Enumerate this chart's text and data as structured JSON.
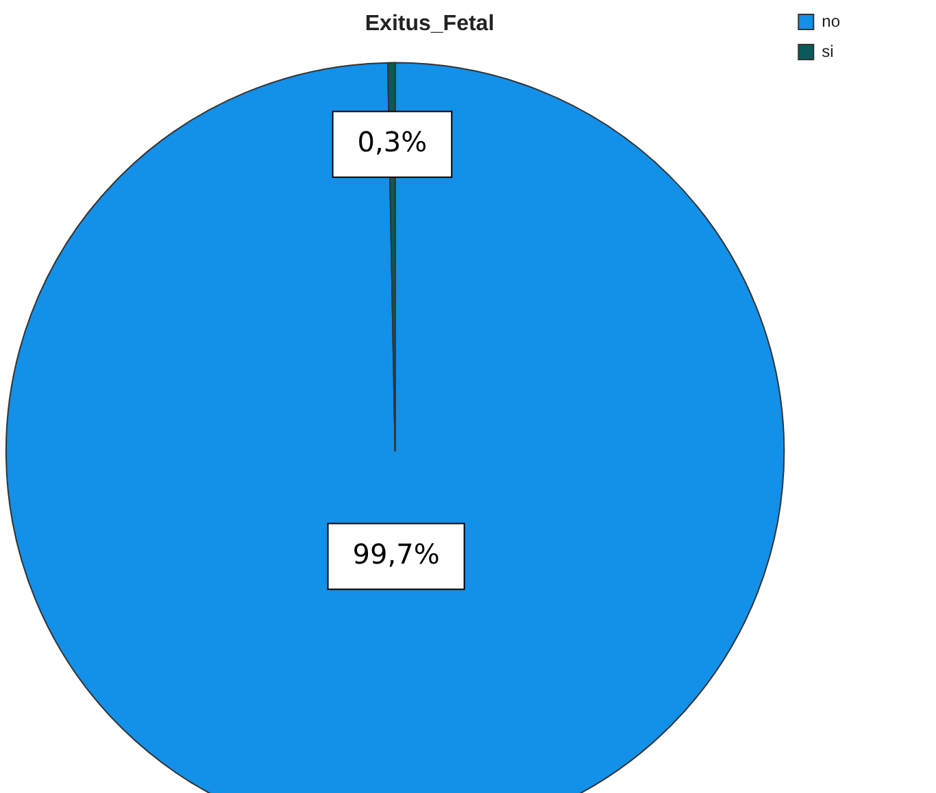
{
  "chart_data": {
    "type": "pie",
    "title": "Exitus_Fetal",
    "categories": [
      "no",
      "si"
    ],
    "values": [
      99.7,
      0.3
    ],
    "colors": [
      "#1390e8",
      "#0b5a5a"
    ],
    "value_labels": [
      "99,7%",
      "0,3%"
    ],
    "legend": "top right"
  }
}
